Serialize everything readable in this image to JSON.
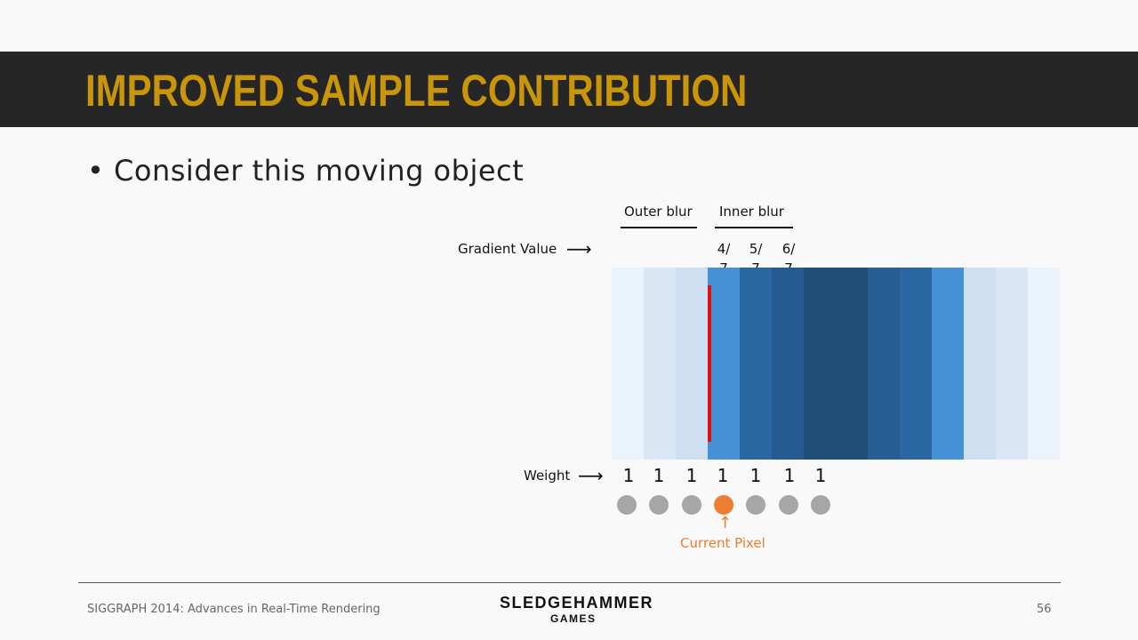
{
  "slide": {
    "title": "IMPROVED SAMPLE CONTRIBUTION",
    "bullet": "• Consider this moving object"
  },
  "diagram": {
    "outer_blur_label": "Outer blur",
    "inner_blur_label": "Inner blur",
    "gradient_label": "Gradient Value",
    "fractions": [
      {
        "num": "4/",
        "den": "7"
      },
      {
        "num": "5/",
        "den": "7"
      },
      {
        "num": "6/",
        "den": "7"
      }
    ],
    "band_colors": [
      "#eaf2fb",
      "#d9e6f4",
      "#cddff0",
      "#4690d6",
      "#2a66a1",
      "#245a8f",
      "#1f4e79",
      "#1f4e79",
      "#275d92",
      "#2a66a1",
      "#4690d6",
      "#cddff0",
      "#d9e6f4",
      "#eaf2fb"
    ],
    "edge_color": "#e01010",
    "weight_label": "Weight",
    "weights": [
      "1",
      "1",
      "1",
      "1",
      "1",
      "1",
      "1"
    ],
    "current_pixel_label": "Current Pixel",
    "current_pixel_index": 3,
    "sample_color": "#a6a6a6",
    "current_color": "#ed7d31"
  },
  "footer": {
    "conference": "SIGGRAPH 2014: Advances in Real-Time Rendering",
    "logo_line1": "SLEDGEHAMMER",
    "logo_line2": "GAMES",
    "page_number": "56"
  }
}
